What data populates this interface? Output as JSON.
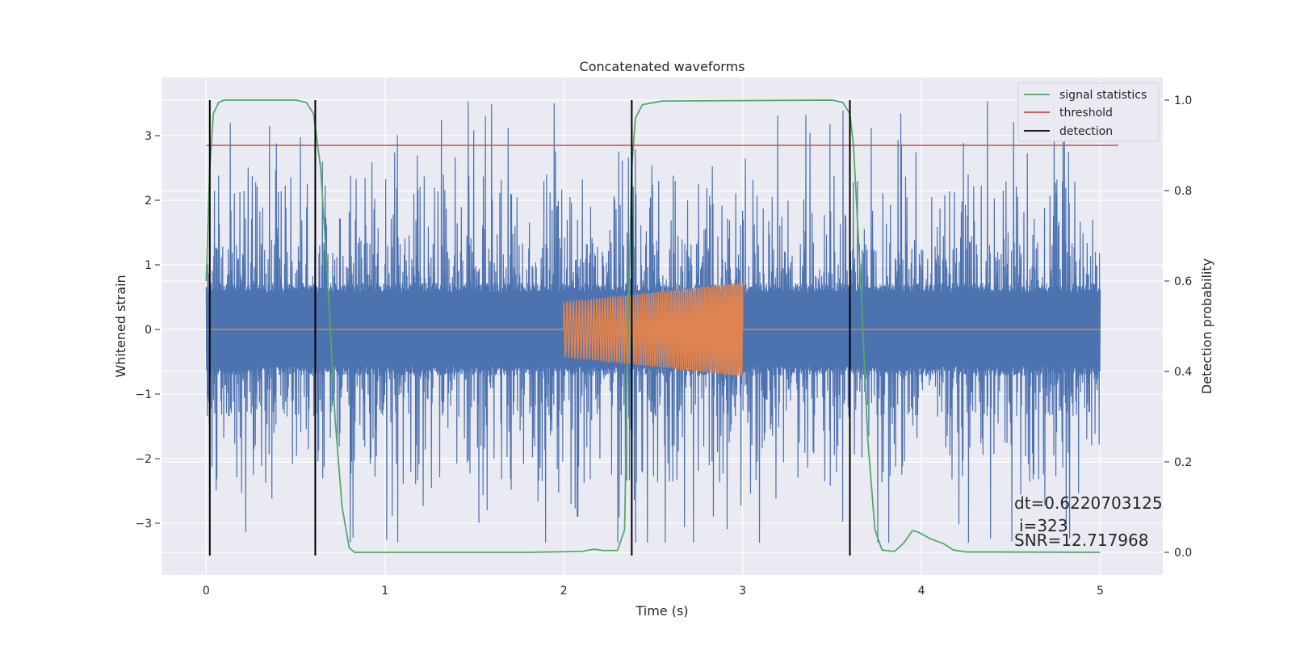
{
  "chart_data": {
    "type": "line",
    "title": "Concatenated waveforms",
    "xlabel": "Time (s)",
    "ylabel": "Whitened strain",
    "ylabel_right": "Detection probability",
    "xlim": [
      -0.25,
      5.35
    ],
    "ylim": [
      -3.8,
      3.9
    ],
    "ylim_right": [
      -0.05,
      1.05
    ],
    "xticks": [
      0,
      1,
      2,
      3,
      4,
      5
    ],
    "yticks": [
      -3,
      -2,
      -1,
      0,
      1,
      2,
      3
    ],
    "yticks_right": [
      0.0,
      0.2,
      0.4,
      0.6,
      0.8,
      1.0
    ],
    "xtick_labels": [
      "0",
      "1",
      "2",
      "3",
      "4",
      "5"
    ],
    "ytick_labels": [
      "−3",
      "−2",
      "−1",
      "0",
      "1",
      "2",
      "3"
    ],
    "ytick_right_labels": [
      "0.0",
      "0.2",
      "0.4",
      "0.6",
      "0.8",
      "1.0"
    ],
    "grid": true,
    "legend_position": "top-right",
    "series": [
      {
        "name": "",
        "kind": "noise",
        "axis": "left",
        "color": "#4c72b0",
        "x_range": [
          0,
          5
        ],
        "core_amplitude": 0.72,
        "spike_max": 3.55,
        "spike_min": -3.3
      },
      {
        "name": "",
        "kind": "chirp",
        "axis": "left",
        "color": "#dd8452",
        "x_range": [
          0,
          5
        ],
        "chirp_start": 2.0,
        "chirp_end": 3.0,
        "amplitude_start": 0.42,
        "amplitude_end": 0.72
      },
      {
        "name": "signal statistics",
        "axis": "right",
        "color": "#55a868",
        "points": [
          [
            0.0,
            0.6
          ],
          [
            0.02,
            0.85
          ],
          [
            0.04,
            0.97
          ],
          [
            0.07,
            0.995
          ],
          [
            0.1,
            1.0
          ],
          [
            0.5,
            1.0
          ],
          [
            0.56,
            0.995
          ],
          [
            0.6,
            0.97
          ],
          [
            0.64,
            0.85
          ],
          [
            0.68,
            0.6
          ],
          [
            0.72,
            0.3
          ],
          [
            0.76,
            0.1
          ],
          [
            0.8,
            0.01
          ],
          [
            0.83,
            0.0
          ],
          [
            1.8,
            0.0
          ],
          [
            2.1,
            0.002
          ],
          [
            2.17,
            0.007
          ],
          [
            2.22,
            0.004
          ],
          [
            2.3,
            0.004
          ],
          [
            2.34,
            0.05
          ],
          [
            2.36,
            0.5
          ],
          [
            2.38,
            0.85
          ],
          [
            2.4,
            0.96
          ],
          [
            2.44,
            0.99
          ],
          [
            2.55,
            0.998
          ],
          [
            3.5,
            1.0
          ],
          [
            3.56,
            0.995
          ],
          [
            3.6,
            0.97
          ],
          [
            3.62,
            0.9
          ],
          [
            3.66,
            0.6
          ],
          [
            3.7,
            0.25
          ],
          [
            3.74,
            0.05
          ],
          [
            3.78,
            0.005
          ],
          [
            3.85,
            0.002
          ],
          [
            3.9,
            0.02
          ],
          [
            3.95,
            0.048
          ],
          [
            3.98,
            0.045
          ],
          [
            4.05,
            0.03
          ],
          [
            4.12,
            0.02
          ],
          [
            4.18,
            0.005
          ],
          [
            4.25,
            0.001
          ],
          [
            5.0,
            0.0
          ]
        ]
      },
      {
        "name": "threshold",
        "axis": "right",
        "color": "#c44e52",
        "value": 0.9,
        "x_range": [
          0,
          5.1
        ]
      },
      {
        "name": "detection",
        "axis": "left",
        "color": "#000000",
        "x_values": [
          0.02,
          0.61,
          2.38,
          3.6
        ],
        "y_range": [
          -3.5,
          3.55
        ]
      }
    ],
    "annotations": [
      "dt=0.6220703125",
      "i=323",
      "SNR=12.717968"
    ],
    "colors": {
      "plot_background": "#eaeaf2",
      "grid": "#ffffff",
      "text": "#262626"
    }
  }
}
